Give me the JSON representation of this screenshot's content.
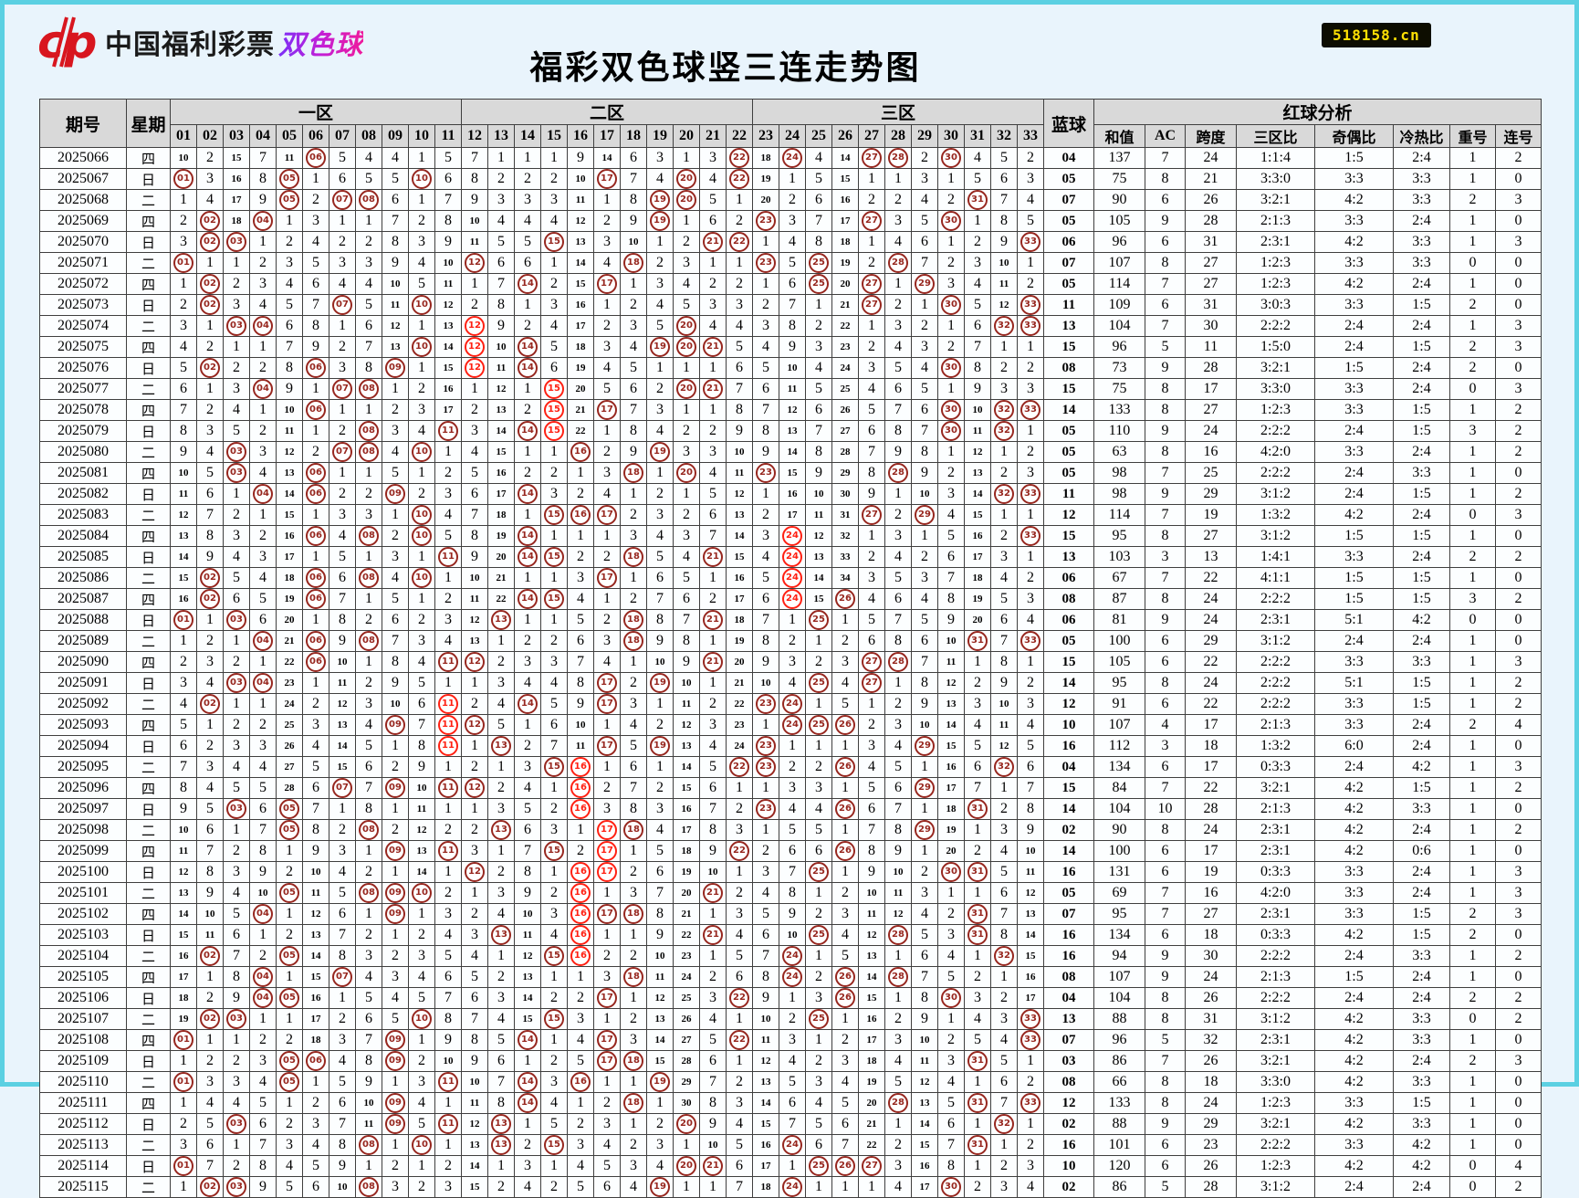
{
  "banner": {
    "logo_brand": "中国福利彩票",
    "logo_product": "双色球",
    "title": "福彩双色球竖三连走势图",
    "site_badge": "518158.cn"
  },
  "colors": {
    "page_bg": "#e9f4fc",
    "frame": "#5bd0e2",
    "header_bg": "#d9d9d9",
    "drawn_circle": "#97271f",
    "streak_circle": "#ff2012",
    "logo_red": "#d8161f",
    "badge_bg": "#0d0d00",
    "badge_text": "#ffe103"
  },
  "table": {
    "corner": [
      "期号",
      "星期"
    ],
    "zones": [
      {
        "label": "一区",
        "start": 1,
        "end": 11
      },
      {
        "label": "二区",
        "start": 12,
        "end": 22
      },
      {
        "label": "三区",
        "start": 23,
        "end": 33
      }
    ],
    "blue_label": "蓝球",
    "analysis_group": "红球分析",
    "analysis_cols": [
      "和值",
      "AC",
      "跨度",
      "三区比",
      "奇偶比",
      "冷热比",
      "重号",
      "连号"
    ],
    "initial_miss": [
      10,
      2,
      15,
      7,
      11,
      0,
      5,
      4,
      4,
      1,
      5,
      7,
      1,
      1,
      1,
      9,
      14,
      6,
      3,
      1,
      3,
      0,
      18,
      0,
      4,
      14,
      0,
      0,
      2,
      0,
      4,
      5,
      2
    ],
    "rows_schema": [
      "period",
      "week",
      "balls",
      "streak_balls",
      "blue",
      "sum",
      "ac",
      "span",
      "zone_ratio",
      "odd_even",
      "cold_hot",
      "repeat",
      "consecutive"
    ],
    "rows": [
      [
        "2025066",
        "四",
        [
          6,
          22,
          24,
          27,
          28,
          30
        ],
        [],
        "04",
        137,
        7,
        24,
        "1:1:4",
        "1:5",
        "2:4",
        1,
        2
      ],
      [
        "2025067",
        "日",
        [
          1,
          5,
          10,
          17,
          20,
          22
        ],
        [],
        "05",
        75,
        8,
        21,
        "3:3:0",
        "3:3",
        "3:3",
        1,
        0
      ],
      [
        "2025068",
        "二",
        [
          5,
          7,
          8,
          19,
          20,
          31
        ],
        [],
        "07",
        90,
        6,
        26,
        "3:2:1",
        "4:2",
        "3:3",
        2,
        3
      ],
      [
        "2025069",
        "四",
        [
          2,
          4,
          19,
          23,
          27,
          30
        ],
        [],
        "05",
        105,
        9,
        28,
        "2:1:3",
        "3:3",
        "2:4",
        1,
        0
      ],
      [
        "2025070",
        "日",
        [
          2,
          3,
          15,
          21,
          22,
          33
        ],
        [],
        "06",
        96,
        6,
        31,
        "2:3:1",
        "4:2",
        "3:3",
        1,
        3
      ],
      [
        "2025071",
        "二",
        [
          1,
          12,
          18,
          23,
          25,
          28
        ],
        [],
        "07",
        107,
        8,
        27,
        "1:2:3",
        "3:3",
        "3:3",
        0,
        0
      ],
      [
        "2025072",
        "四",
        [
          2,
          14,
          17,
          25,
          27,
          29
        ],
        [],
        "05",
        114,
        7,
        27,
        "1:2:3",
        "4:2",
        "2:4",
        1,
        0
      ],
      [
        "2025073",
        "日",
        [
          2,
          7,
          10,
          27,
          30,
          33
        ],
        [],
        "11",
        109,
        6,
        31,
        "3:0:3",
        "3:3",
        "1:5",
        2,
        0
      ],
      [
        "2025074",
        "二",
        [
          3,
          4,
          12,
          20,
          32,
          33
        ],
        [
          12
        ],
        "13",
        104,
        7,
        30,
        "2:2:2",
        "2:4",
        "2:4",
        1,
        3
      ],
      [
        "2025075",
        "四",
        [
          10,
          12,
          14,
          19,
          20,
          21
        ],
        [
          12
        ],
        "15",
        96,
        5,
        11,
        "1:5:0",
        "2:4",
        "1:5",
        2,
        3
      ],
      [
        "2025076",
        "日",
        [
          2,
          6,
          9,
          12,
          14,
          30
        ],
        [
          12
        ],
        "08",
        73,
        9,
        28,
        "3:2:1",
        "1:5",
        "2:4",
        2,
        0
      ],
      [
        "2025077",
        "二",
        [
          4,
          7,
          8,
          15,
          20,
          21
        ],
        [
          15
        ],
        "15",
        75,
        8,
        17,
        "3:3:0",
        "3:3",
        "2:4",
        0,
        3
      ],
      [
        "2025078",
        "四",
        [
          6,
          15,
          17,
          30,
          32,
          33
        ],
        [
          15
        ],
        "14",
        133,
        8,
        27,
        "1:2:3",
        "3:3",
        "1:5",
        1,
        2
      ],
      [
        "2025079",
        "日",
        [
          8,
          11,
          14,
          15,
          30,
          32
        ],
        [
          15
        ],
        "05",
        110,
        9,
        24,
        "2:2:2",
        "2:4",
        "1:5",
        3,
        2
      ],
      [
        "2025080",
        "二",
        [
          3,
          7,
          8,
          10,
          16,
          19
        ],
        [],
        "05",
        63,
        8,
        16,
        "4:2:0",
        "3:3",
        "2:4",
        1,
        2
      ],
      [
        "2025081",
        "四",
        [
          3,
          6,
          18,
          20,
          23,
          28
        ],
        [],
        "05",
        98,
        7,
        25,
        "2:2:2",
        "2:4",
        "3:3",
        1,
        0
      ],
      [
        "2025082",
        "日",
        [
          4,
          6,
          9,
          14,
          32,
          33
        ],
        [],
        "11",
        98,
        9,
        29,
        "3:1:2",
        "2:4",
        "1:5",
        1,
        2
      ],
      [
        "2025083",
        "二",
        [
          10,
          15,
          16,
          17,
          27,
          29
        ],
        [],
        "12",
        114,
        7,
        19,
        "1:3:2",
        "4:2",
        "2:4",
        0,
        3
      ],
      [
        "2025084",
        "四",
        [
          6,
          8,
          10,
          14,
          24,
          33
        ],
        [
          24
        ],
        "15",
        95,
        8,
        27,
        "3:1:2",
        "1:5",
        "1:5",
        1,
        0
      ],
      [
        "2025085",
        "日",
        [
          11,
          14,
          15,
          18,
          21,
          24
        ],
        [
          24
        ],
        "13",
        103,
        3,
        13,
        "1:4:1",
        "3:3",
        "2:4",
        2,
        2
      ],
      [
        "2025086",
        "二",
        [
          2,
          6,
          8,
          10,
          17,
          24
        ],
        [
          24
        ],
        "06",
        67,
        7,
        22,
        "4:1:1",
        "1:5",
        "1:5",
        1,
        0
      ],
      [
        "2025087",
        "四",
        [
          2,
          6,
          14,
          15,
          24,
          26
        ],
        [
          24
        ],
        "08",
        87,
        8,
        24,
        "2:2:2",
        "1:5",
        "1:5",
        3,
        2
      ],
      [
        "2025088",
        "日",
        [
          1,
          3,
          13,
          18,
          21,
          25
        ],
        [],
        "06",
        81,
        9,
        24,
        "2:3:1",
        "5:1",
        "4:2",
        0,
        0
      ],
      [
        "2025089",
        "二",
        [
          4,
          6,
          8,
          18,
          31,
          33
        ],
        [],
        "05",
        100,
        6,
        29,
        "3:1:2",
        "2:4",
        "2:4",
        1,
        0
      ],
      [
        "2025090",
        "四",
        [
          6,
          11,
          12,
          21,
          27,
          28
        ],
        [],
        "15",
        105,
        6,
        22,
        "2:2:2",
        "3:3",
        "3:3",
        1,
        3
      ],
      [
        "2025091",
        "日",
        [
          3,
          4,
          17,
          19,
          25,
          27
        ],
        [],
        "14",
        95,
        8,
        24,
        "2:2:2",
        "5:1",
        "1:5",
        1,
        2
      ],
      [
        "2025092",
        "二",
        [
          2,
          11,
          14,
          17,
          23,
          24
        ],
        [
          11
        ],
        "12",
        91,
        6,
        22,
        "2:2:2",
        "3:3",
        "1:5",
        1,
        2
      ],
      [
        "2025093",
        "四",
        [
          9,
          11,
          12,
          24,
          25,
          26
        ],
        [
          11
        ],
        "10",
        107,
        4,
        17,
        "2:1:3",
        "3:3",
        "2:4",
        2,
        4
      ],
      [
        "2025094",
        "日",
        [
          11,
          13,
          17,
          19,
          23,
          29
        ],
        [
          11
        ],
        "16",
        112,
        3,
        18,
        "1:3:2",
        "6:0",
        "2:4",
        1,
        0
      ],
      [
        "2025095",
        "二",
        [
          15,
          16,
          22,
          23,
          26,
          32
        ],
        [
          16
        ],
        "04",
        134,
        6,
        17,
        "0:3:3",
        "2:4",
        "4:2",
        1,
        3
      ],
      [
        "2025096",
        "四",
        [
          7,
          9,
          11,
          12,
          16,
          29
        ],
        [
          16
        ],
        "15",
        84,
        7,
        22,
        "3:2:1",
        "4:2",
        "1:5",
        1,
        2
      ],
      [
        "2025097",
        "日",
        [
          3,
          5,
          16,
          23,
          26,
          31
        ],
        [
          16
        ],
        "14",
        104,
        10,
        28,
        "2:1:3",
        "4:2",
        "3:3",
        1,
        0
      ],
      [
        "2025098",
        "二",
        [
          5,
          8,
          13,
          17,
          18,
          29
        ],
        [
          17
        ],
        "02",
        90,
        8,
        24,
        "2:3:1",
        "4:2",
        "2:4",
        1,
        2
      ],
      [
        "2025099",
        "四",
        [
          9,
          11,
          15,
          17,
          22,
          26
        ],
        [
          17
        ],
        "14",
        100,
        6,
        17,
        "2:3:1",
        "4:2",
        "0:6",
        1,
        0
      ],
      [
        "2025100",
        "日",
        [
          12,
          16,
          17,
          25,
          30,
          31
        ],
        [
          16,
          17
        ],
        "16",
        131,
        6,
        19,
        "0:3:3",
        "3:3",
        "2:4",
        1,
        3
      ],
      [
        "2025101",
        "二",
        [
          5,
          8,
          9,
          10,
          16,
          21
        ],
        [
          16
        ],
        "05",
        69,
        7,
        16,
        "4:2:0",
        "3:3",
        "2:4",
        1,
        3
      ],
      [
        "2025102",
        "四",
        [
          4,
          9,
          16,
          17,
          18,
          31
        ],
        [
          16
        ],
        "07",
        95,
        7,
        27,
        "2:3:1",
        "3:3",
        "1:5",
        2,
        3
      ],
      [
        "2025103",
        "日",
        [
          13,
          16,
          21,
          25,
          28,
          31
        ],
        [
          16
        ],
        "16",
        134,
        6,
        18,
        "0:3:3",
        "4:2",
        "1:5",
        2,
        0
      ],
      [
        "2025104",
        "二",
        [
          2,
          5,
          15,
          16,
          24,
          32
        ],
        [
          16
        ],
        "16",
        94,
        9,
        30,
        "2:2:2",
        "2:4",
        "3:3",
        1,
        2
      ],
      [
        "2025105",
        "四",
        [
          4,
          7,
          18,
          24,
          26,
          28
        ],
        [],
        "08",
        107,
        9,
        24,
        "2:1:3",
        "1:5",
        "2:4",
        1,
        0
      ],
      [
        "2025106",
        "日",
        [
          4,
          5,
          17,
          22,
          26,
          30
        ],
        [],
        "04",
        104,
        8,
        26,
        "2:2:2",
        "2:4",
        "2:4",
        2,
        2
      ],
      [
        "2025107",
        "二",
        [
          2,
          3,
          10,
          15,
          25,
          33
        ],
        [],
        "13",
        88,
        8,
        31,
        "3:1:2",
        "4:2",
        "3:3",
        0,
        2
      ],
      [
        "2025108",
        "四",
        [
          1,
          9,
          14,
          17,
          22,
          33
        ],
        [],
        "07",
        96,
        5,
        32,
        "2:3:1",
        "4:2",
        "3:3",
        1,
        0
      ],
      [
        "2025109",
        "日",
        [
          5,
          6,
          9,
          17,
          18,
          31
        ],
        [],
        "03",
        86,
        7,
        26,
        "3:2:1",
        "4:2",
        "2:4",
        2,
        3
      ],
      [
        "2025110",
        "二",
        [
          1,
          5,
          11,
          14,
          16,
          19
        ],
        [],
        "08",
        66,
        8,
        18,
        "3:3:0",
        "4:2",
        "3:3",
        1,
        0
      ],
      [
        "2025111",
        "四",
        [
          9,
          14,
          18,
          28,
          31,
          33
        ],
        [],
        "12",
        133,
        8,
        24,
        "1:2:3",
        "3:3",
        "1:5",
        1,
        0
      ],
      [
        "2025112",
        "日",
        [
          3,
          9,
          11,
          13,
          20,
          32
        ],
        [],
        "02",
        88,
        9,
        29,
        "3:2:1",
        "4:2",
        "3:3",
        1,
        0
      ],
      [
        "2025113",
        "二",
        [
          8,
          10,
          13,
          15,
          24,
          31
        ],
        [],
        "16",
        101,
        6,
        23,
        "2:2:2",
        "3:3",
        "4:2",
        1,
        0
      ],
      [
        "2025114",
        "日",
        [
          1,
          20,
          21,
          25,
          26,
          27
        ],
        [],
        "10",
        120,
        6,
        26,
        "1:2:3",
        "4:2",
        "4:2",
        0,
        4
      ],
      [
        "2025115",
        "二",
        [
          2,
          3,
          8,
          19,
          24,
          30
        ],
        [],
        "02",
        86,
        5,
        28,
        "3:1:2",
        "2:4",
        "2:4",
        0,
        2
      ]
    ]
  }
}
